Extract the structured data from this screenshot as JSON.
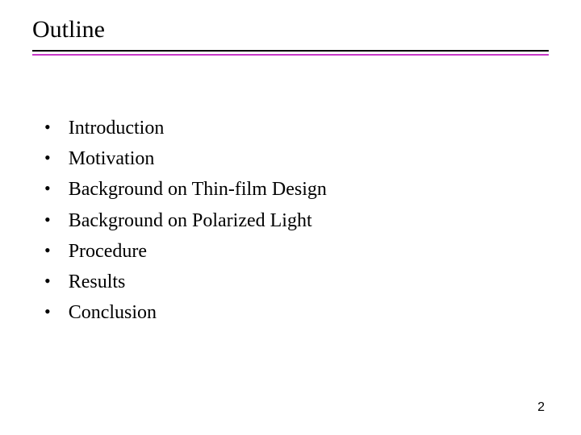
{
  "slide": {
    "title": "Outline",
    "title_fontsize": 30,
    "title_color": "#000000",
    "underline_top_color": "#000000",
    "underline_bottom_color": "#c838c8",
    "background_color": "#ffffff",
    "bullets": [
      "Introduction",
      "Motivation",
      "Background on Thin-film Design",
      "Background on Polarized Light",
      "Procedure",
      "Results",
      "Conclusion"
    ],
    "bullet_fontsize": 24,
    "bullet_color": "#000000",
    "bullet_marker": "•",
    "page_number": "2",
    "page_number_fontsize": 16
  }
}
